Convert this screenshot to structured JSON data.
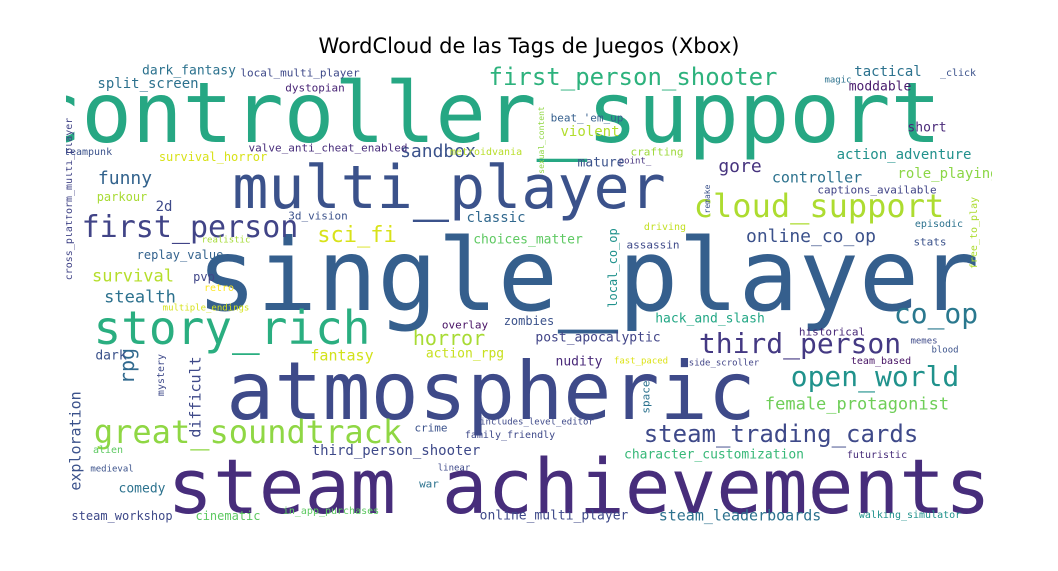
{
  "title": "WordCloud de las Tags de Juegos (Xbox)",
  "words": [
    {
      "text": "controller_support",
      "color": "#26a783",
      "fs": 84
    },
    {
      "text": "single_player",
      "color": "#355f8d",
      "fs": 100
    },
    {
      "text": "multi_player",
      "color": "#3b528b",
      "fs": 60
    },
    {
      "text": "atmospheric",
      "color": "#3e4a89",
      "fs": 80
    },
    {
      "text": "steam_achievements",
      "color": "#472d7b",
      "fs": 76
    },
    {
      "text": "story_rich",
      "color": "#2aae80",
      "fs": 46
    },
    {
      "text": "great_soundtrack",
      "color": "#8fd744",
      "fs": 32
    },
    {
      "text": "cloud_support",
      "color": "#addc30",
      "fs": 32
    },
    {
      "text": "first_person",
      "color": "#414487",
      "fs": 30
    },
    {
      "text": "first_person_shooter",
      "color": "#2db27d",
      "fs": 24
    },
    {
      "text": "third_person",
      "color": "#443983",
      "fs": 28
    },
    {
      "text": "open_world",
      "color": "#20928c",
      "fs": 28
    },
    {
      "text": "steam_trading_cards",
      "color": "#3e4989",
      "fs": 24
    },
    {
      "text": "co_op",
      "color": "#2a788e",
      "fs": 28
    },
    {
      "text": "sci_fi",
      "color": "#d8e219",
      "fs": 22
    },
    {
      "text": "sandbox",
      "color": "#3b528b",
      "fs": 18
    },
    {
      "text": "online_co_op",
      "color": "#3b518b",
      "fs": 18
    },
    {
      "text": "horror",
      "color": "#a8db34",
      "fs": 20
    },
    {
      "text": "gore",
      "color": "#46337e",
      "fs": 18
    },
    {
      "text": "funny",
      "color": "#33638d",
      "fs": 18
    },
    {
      "text": "survival",
      "color": "#b5de2b",
      "fs": 17
    },
    {
      "text": "stealth",
      "color": "#2c718e",
      "fs": 17
    },
    {
      "text": "female_protagonist",
      "color": "#6ece58",
      "fs": 17
    },
    {
      "text": "rpg",
      "color": "#30698e",
      "fs": 20
    },
    {
      "text": "fantasy",
      "color": "#d2e21b",
      "fs": 15
    },
    {
      "text": "exploration",
      "color": "#3b528b",
      "fs": 15
    },
    {
      "text": "difficult",
      "color": "#3e4989",
      "fs": 15
    },
    {
      "text": "violent",
      "color": "#b2dd2d",
      "fs": 14
    },
    {
      "text": "dark_fantasy",
      "color": "#2c728e",
      "fs": 13
    },
    {
      "text": "local_multi_player",
      "color": "#3e4989",
      "fs": 11
    },
    {
      "text": "split_screen",
      "color": "#2c718e",
      "fs": 14
    },
    {
      "text": "dystopian",
      "color": "#482475",
      "fs": 11
    },
    {
      "text": "tactical",
      "color": "#2c728e",
      "fs": 14
    },
    {
      "text": "moddable",
      "color": "#481b6d",
      "fs": 13
    },
    {
      "text": "_click",
      "color": "#3b528b",
      "fs": 10
    },
    {
      "text": "magic",
      "color": "#2c728e",
      "fs": 9
    },
    {
      "text": "beat_'em_up",
      "color": "#355f8d",
      "fs": 11
    },
    {
      "text": "valve_anti_cheat_enabled",
      "color": "#472c7a",
      "fs": 11
    },
    {
      "text": "survival_horror",
      "color": "#d8e219",
      "fs": 12
    },
    {
      "text": "metroidvania",
      "color": "#b8de29",
      "fs": 10
    },
    {
      "text": "sexual_content",
      "color": "#90d743",
      "fs": 8
    },
    {
      "text": "crafting",
      "color": "#9dd93b",
      "fs": 11
    },
    {
      "text": "point_",
      "color": "#46337e",
      "fs": 9
    },
    {
      "text": "mature",
      "color": "#3b528b",
      "fs": 13
    },
    {
      "text": "action_adventure",
      "color": "#21918c",
      "fs": 14
    },
    {
      "text": "short",
      "color": "#482878",
      "fs": 13
    },
    {
      "text": "controller",
      "color": "#2c728e",
      "fs": 15
    },
    {
      "text": "role_playing",
      "color": "#8bd646",
      "fs": 14
    },
    {
      "text": "captions_available",
      "color": "#414487",
      "fs": 11
    },
    {
      "text": "episodic",
      "color": "#2c728e",
      "fs": 10
    },
    {
      "text": "free_to_play",
      "color": "#addc30",
      "fs": 10
    },
    {
      "text": "stats",
      "color": "#3b528b",
      "fs": 11
    },
    {
      "text": "steampunk",
      "color": "#3b528b",
      "fs": 10
    },
    {
      "text": "cross_platform_multi_player",
      "color": "#414487",
      "fs": 10
    },
    {
      "text": "parkour",
      "color": "#a8db34",
      "fs": 12
    },
    {
      "text": "2d",
      "color": "#3e4a89",
      "fs": 14
    },
    {
      "text": "classic",
      "color": "#31688e",
      "fs": 14
    },
    {
      "text": "3d_vision",
      "color": "#3b528b",
      "fs": 11
    },
    {
      "text": "choices_matter",
      "color": "#5ec962",
      "fs": 13
    },
    {
      "text": "driving",
      "color": "#c2df23",
      "fs": 10
    },
    {
      "text": "assassin",
      "color": "#3e4989",
      "fs": 11
    },
    {
      "text": "remake",
      "color": "#3b528b",
      "fs": 8
    },
    {
      "text": "realistic",
      "color": "#a5db36",
      "fs": 9
    },
    {
      "text": "replay_value",
      "color": "#33628d",
      "fs": 12
    },
    {
      "text": "pvp",
      "color": "#404688",
      "fs": 12
    },
    {
      "text": "retro",
      "color": "#fde725",
      "fs": 10
    },
    {
      "text": "local_co_op",
      "color": "#20928c",
      "fs": 12
    },
    {
      "text": "multiple_endings",
      "color": "#d5e21a",
      "fs": 9
    },
    {
      "text": "overlay",
      "color": "#471164",
      "fs": 11
    },
    {
      "text": "zombies",
      "color": "#3b528b",
      "fs": 12
    },
    {
      "text": "hack_and_slash",
      "color": "#22a785",
      "fs": 13
    },
    {
      "text": "post_apocalyptic",
      "color": "#414487",
      "fs": 13
    },
    {
      "text": "historical",
      "color": "#482878",
      "fs": 11
    },
    {
      "text": "action_rpg",
      "color": "#c8e020",
      "fs": 13
    },
    {
      "text": "dark",
      "color": "#3b528b",
      "fs": 13
    },
    {
      "text": "mystery",
      "color": "#3e4989",
      "fs": 10
    },
    {
      "text": "nudity",
      "color": "#482878",
      "fs": 13
    },
    {
      "text": "fast_paced",
      "color": "#dde318",
      "fs": 9
    },
    {
      "text": "side_scroller",
      "color": "#414487",
      "fs": 9
    },
    {
      "text": "memes",
      "color": "#3e4a89",
      "fs": 9
    },
    {
      "text": "team_based",
      "color": "#471365",
      "fs": 10
    },
    {
      "text": "blood",
      "color": "#3b528b",
      "fs": 9
    },
    {
      "text": "space",
      "color": "#2c728e",
      "fs": 11
    },
    {
      "text": "crime",
      "color": "#3b528b",
      "fs": 11
    },
    {
      "text": "includes_level_editor",
      "color": "#3e4989",
      "fs": 9
    },
    {
      "text": "family_friendly",
      "color": "#3e4989",
      "fs": 10
    },
    {
      "text": "alien",
      "color": "#5ec962",
      "fs": 10
    },
    {
      "text": "third_person_shooter",
      "color": "#3e4989",
      "fs": 14
    },
    {
      "text": "character_customization",
      "color": "#37b878",
      "fs": 13
    },
    {
      "text": "futuristic",
      "color": "#472c7a",
      "fs": 10
    },
    {
      "text": "medieval",
      "color": "#3b528b",
      "fs": 9
    },
    {
      "text": "linear",
      "color": "#3e4989",
      "fs": 9
    },
    {
      "text": "war",
      "color": "#2c728e",
      "fs": 11
    },
    {
      "text": "comedy",
      "color": "#2c728e",
      "fs": 13
    },
    {
      "text": "steam_workshop",
      "color": "#3e4989",
      "fs": 12
    },
    {
      "text": "cinematic",
      "color": "#5ec962",
      "fs": 12
    },
    {
      "text": "in_app_purchases",
      "color": "#5ec962",
      "fs": 10
    },
    {
      "text": "online_multi_player",
      "color": "#3e4989",
      "fs": 13
    },
    {
      "text": "steam_leaderboards",
      "color": "#2c728e",
      "fs": 15
    },
    {
      "text": "walking_simulator",
      "color": "#20928c",
      "fs": 10
    }
  ]
}
